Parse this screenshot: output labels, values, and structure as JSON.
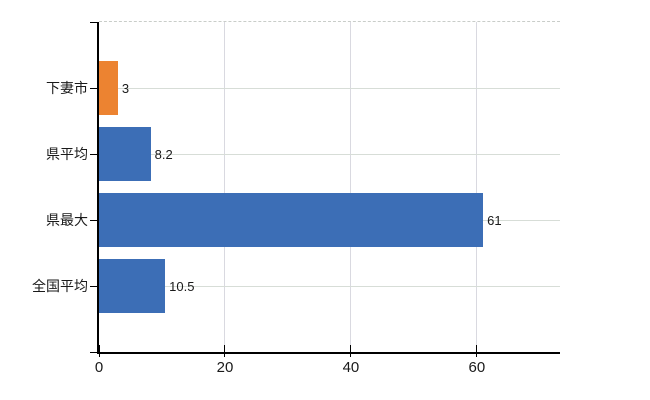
{
  "chart_data": {
    "type": "bar",
    "orientation": "horizontal",
    "title": "",
    "xlabel": "",
    "ylabel": "",
    "categories": [
      "下妻市",
      "県平均",
      "県最大",
      "全国平均"
    ],
    "values": [
      3,
      8.2,
      61,
      10.5
    ],
    "value_labels": [
      "3",
      "8.2",
      "61",
      "10.5"
    ],
    "x_tick_labels": [
      "0",
      "20",
      "40",
      "60"
    ],
    "x_tick_values": [
      0,
      20,
      40,
      60
    ],
    "xlim": [
      0,
      73.2
    ],
    "grid": true,
    "legend": false,
    "colors": {
      "bar_default": "#3c6eb6",
      "bar_highlight": "#ec8331",
      "bars": [
        "#ec8331",
        "#3c6eb6",
        "#3c6eb6",
        "#3c6eb6"
      ],
      "axis": "#000000",
      "grid_horizontal": "#d7ddd7",
      "grid_vertical": "#d9d9e0",
      "plot_border_top": "#c9cdc9",
      "text": "#1a1a1a",
      "background": "#ffffff"
    }
  }
}
